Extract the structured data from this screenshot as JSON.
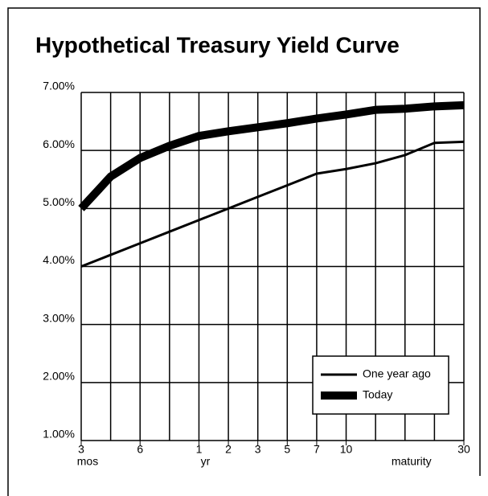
{
  "chart_data": {
    "type": "line",
    "title": "Hypothetical Treasury Yield Curve",
    "x": [
      0,
      1,
      2,
      3,
      4,
      5,
      6,
      7,
      8,
      9,
      10,
      11,
      12,
      13
    ],
    "series": [
      {
        "name": "One year ago",
        "color": "#000000",
        "width": 3,
        "values": [
          4.0,
          4.2,
          4.4,
          4.6,
          4.8,
          5.0,
          5.2,
          5.4,
          5.6,
          5.68,
          5.78,
          5.92,
          6.13,
          6.15
        ]
      },
      {
        "name": "Today",
        "color": "#000000",
        "width": 10,
        "values": [
          5.0,
          5.55,
          5.87,
          6.08,
          6.25,
          6.33,
          6.4,
          6.47,
          6.55,
          6.62,
          6.7,
          6.72,
          6.76,
          6.78
        ]
      }
    ],
    "xlim": [
      0,
      13
    ],
    "xticks": [
      {
        "value": 0,
        "label": "3"
      },
      {
        "value": 2,
        "label": "6"
      },
      {
        "value": 4,
        "label": "1"
      },
      {
        "value": 5,
        "label": "2"
      },
      {
        "value": 6,
        "label": "3"
      },
      {
        "value": 7,
        "label": "5"
      },
      {
        "value": 8,
        "label": "7"
      },
      {
        "value": 9,
        "label": "10"
      },
      {
        "value": 13,
        "label": "30"
      }
    ],
    "xgrid": [
      0,
      1,
      2,
      3,
      4,
      5,
      6,
      7,
      8,
      9,
      10,
      11,
      12,
      13
    ],
    "x_sublabels": [
      {
        "value": 0,
        "label": "mos"
      },
      {
        "value": 4,
        "label": "yr"
      },
      {
        "value": 11,
        "label": "maturity"
      }
    ],
    "ylim": [
      1,
      7
    ],
    "yticks": [
      {
        "value": 1,
        "label": "1.00%"
      },
      {
        "value": 2,
        "label": "2.00%"
      },
      {
        "value": 3,
        "label": "3.00%"
      },
      {
        "value": 4,
        "label": "4.00%"
      },
      {
        "value": 5,
        "label": "5.00%"
      },
      {
        "value": 6,
        "label": "6.00%"
      },
      {
        "value": 7,
        "label": "7.00%"
      }
    ],
    "grid": true,
    "legend": "lower right"
  }
}
